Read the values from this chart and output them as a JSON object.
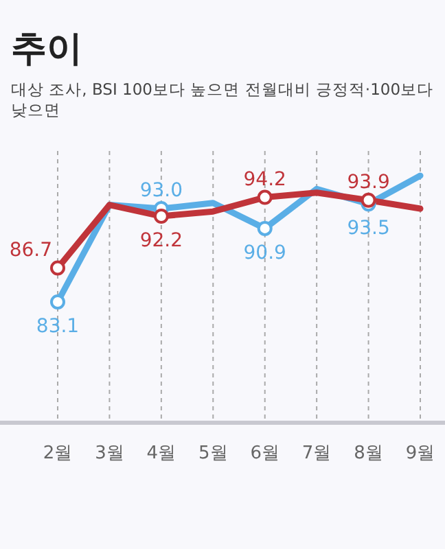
{
  "chart_data": {
    "type": "line",
    "title": "추이",
    "subtitle": "대상 조사, BSI 100보다 높으면 전월대비 긍정적·100보다 낮으면",
    "categories": [
      "2월",
      "3월",
      "4월",
      "5월",
      "6월",
      "7월",
      "8월",
      "9월"
    ],
    "grid": "x",
    "marker": "circle",
    "series": [
      {
        "color": "#5aaee6",
        "values": [
          83.1,
          93.4,
          93.0,
          93.6,
          90.9,
          95.1,
          93.5,
          96.5
        ],
        "value_labels": [
          "83.1",
          null,
          "93.0",
          null,
          "90.9",
          null,
          "93.5",
          null
        ]
      },
      {
        "color": "#c0343a",
        "values": [
          86.7,
          93.4,
          92.2,
          92.7,
          94.2,
          94.7,
          93.9,
          93.0
        ],
        "value_labels": [
          "86.7",
          null,
          "92.2",
          null,
          "94.2",
          null,
          "93.9",
          null
        ]
      }
    ]
  }
}
